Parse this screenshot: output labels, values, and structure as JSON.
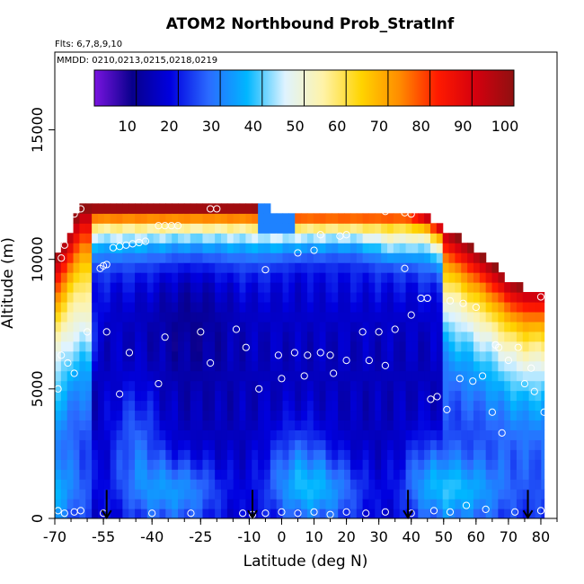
{
  "chart_data": {
    "type": "heatmap",
    "title": "ATOM2 Northbound Prob_StratInf",
    "notes": [
      "Flts: 6,7,8,9,10",
      "MMDD: 0210,0213,0215,0218,0219"
    ],
    "xlabel": "Latitude (deg N)",
    "ylabel": "Altitude (m)",
    "xlim": [
      -70,
      85
    ],
    "ylim": [
      0,
      18000
    ],
    "x_ticks": [
      -70,
      -55,
      -40,
      -25,
      -10,
      0,
      10,
      20,
      30,
      40,
      50,
      60,
      70,
      80
    ],
    "y_ticks": [
      0,
      5000,
      10000,
      15000
    ],
    "colorbar": {
      "range": [
        0,
        100
      ],
      "ticks": [
        10,
        20,
        30,
        40,
        50,
        60,
        70,
        80,
        90,
        100
      ],
      "colors": [
        "#7a14e0",
        "#08008c",
        "#0000e0",
        "#2b6bff",
        "#00b6ff",
        "#dff3ff",
        "#fff3a8",
        "#ffd400",
        "#ff8c00",
        "#ff1a00",
        "#d4000e",
        "#8f1010"
      ]
    },
    "arrows_x": [
      -54,
      -9,
      39,
      76
    ],
    "points": [
      {
        "x": -68,
        "y": 10050
      },
      {
        "x": -67,
        "y": 10550
      },
      {
        "x": -66,
        "y": 11250
      },
      {
        "x": -64,
        "y": 11750
      },
      {
        "x": -62,
        "y": 11950
      },
      {
        "x": -56,
        "y": 9650
      },
      {
        "x": -55,
        "y": 9750
      },
      {
        "x": -54,
        "y": 9800
      },
      {
        "x": -52,
        "y": 10450
      },
      {
        "x": -50,
        "y": 10500
      },
      {
        "x": -48,
        "y": 10550
      },
      {
        "x": -46,
        "y": 10600
      },
      {
        "x": -44,
        "y": 10650
      },
      {
        "x": -42,
        "y": 10700
      },
      {
        "x": -38,
        "y": 11300
      },
      {
        "x": -36,
        "y": 11300
      },
      {
        "x": -34,
        "y": 11300
      },
      {
        "x": -32,
        "y": 11300
      },
      {
        "x": -22,
        "y": 11950
      },
      {
        "x": -20,
        "y": 11950
      },
      {
        "x": 5,
        "y": 10250
      },
      {
        "x": 10,
        "y": 10350
      },
      {
        "x": 12,
        "y": 10950
      },
      {
        "x": 18,
        "y": 10900
      },
      {
        "x": 20,
        "y": 10950
      },
      {
        "x": 32,
        "y": 11850
      },
      {
        "x": 38,
        "y": 11800
      },
      {
        "x": 40,
        "y": 11750
      },
      {
        "x": -5,
        "y": 9600
      },
      {
        "x": 38,
        "y": 9650
      },
      {
        "x": 43,
        "y": 8500
      },
      {
        "x": 45,
        "y": 8500
      },
      {
        "x": 52,
        "y": 8400
      },
      {
        "x": 56,
        "y": 8300
      },
      {
        "x": 60,
        "y": 8150
      },
      {
        "x": 72,
        "y": 9400
      },
      {
        "x": 80,
        "y": 8550
      },
      {
        "x": 40,
        "y": 7850
      },
      {
        "x": -68,
        "y": 6300
      },
      {
        "x": -66,
        "y": 6000
      },
      {
        "x": -64,
        "y": 5600
      },
      {
        "x": -60,
        "y": 7200
      },
      {
        "x": -54,
        "y": 7200
      },
      {
        "x": -47,
        "y": 6400
      },
      {
        "x": -36,
        "y": 7000
      },
      {
        "x": -25,
        "y": 7200
      },
      {
        "x": -14,
        "y": 7300
      },
      {
        "x": -11,
        "y": 6600
      },
      {
        "x": -22,
        "y": 6000
      },
      {
        "x": -1,
        "y": 6300
      },
      {
        "x": 4,
        "y": 6400
      },
      {
        "x": 8,
        "y": 6300
      },
      {
        "x": 12,
        "y": 6400
      },
      {
        "x": 15,
        "y": 6300
      },
      {
        "x": 20,
        "y": 6100
      },
      {
        "x": 25,
        "y": 7200
      },
      {
        "x": 30,
        "y": 7200
      },
      {
        "x": 35,
        "y": 7300
      },
      {
        "x": 32,
        "y": 5900
      },
      {
        "x": 27,
        "y": 6100
      },
      {
        "x": 66,
        "y": 6700
      },
      {
        "x": 67,
        "y": 6600
      },
      {
        "x": 70,
        "y": 6100
      },
      {
        "x": 73,
        "y": 6600
      },
      {
        "x": 77,
        "y": 5800
      },
      {
        "x": -50,
        "y": 4800
      },
      {
        "x": -38,
        "y": 5200
      },
      {
        "x": -7,
        "y": 5000
      },
      {
        "x": 0,
        "y": 5400
      },
      {
        "x": 7,
        "y": 5500
      },
      {
        "x": 16,
        "y": 5600
      },
      {
        "x": 46,
        "y": 4600
      },
      {
        "x": 48,
        "y": 4700
      },
      {
        "x": 51,
        "y": 4200
      },
      {
        "x": 55,
        "y": 5400
      },
      {
        "x": 59,
        "y": 5300
      },
      {
        "x": 62,
        "y": 5500
      },
      {
        "x": 65,
        "y": 4100
      },
      {
        "x": 75,
        "y": 5200
      },
      {
        "x": 78,
        "y": 4900
      },
      {
        "x": 81,
        "y": 4100
      },
      {
        "x": -69,
        "y": 5000
      },
      {
        "x": 68,
        "y": 3300
      },
      {
        "x": -69,
        "y": 300
      },
      {
        "x": -67,
        "y": 200
      },
      {
        "x": -64,
        "y": 250
      },
      {
        "x": -62,
        "y": 300
      },
      {
        "x": -55,
        "y": 200
      },
      {
        "x": -40,
        "y": 200
      },
      {
        "x": -28,
        "y": 200
      },
      {
        "x": -12,
        "y": 200
      },
      {
        "x": -9,
        "y": 150
      },
      {
        "x": -5,
        "y": 200
      },
      {
        "x": 0,
        "y": 250
      },
      {
        "x": 5,
        "y": 200
      },
      {
        "x": 10,
        "y": 250
      },
      {
        "x": 15,
        "y": 150
      },
      {
        "x": 20,
        "y": 250
      },
      {
        "x": 26,
        "y": 200
      },
      {
        "x": 32,
        "y": 250
      },
      {
        "x": 40,
        "y": 200
      },
      {
        "x": 47,
        "y": 300
      },
      {
        "x": 52,
        "y": 250
      },
      {
        "x": 57,
        "y": 500
      },
      {
        "x": 63,
        "y": 350
      },
      {
        "x": 72,
        "y": 250
      },
      {
        "x": 80,
        "y": 300
      }
    ]
  }
}
